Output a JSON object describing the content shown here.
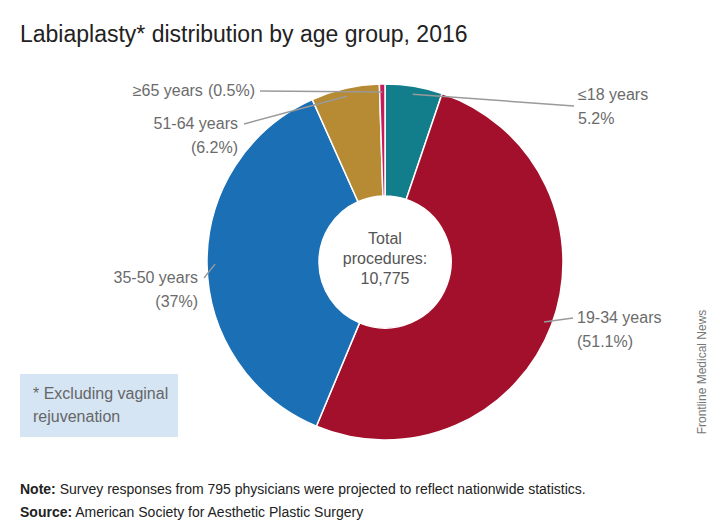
{
  "chart_data": {
    "type": "pie",
    "title": "Labiaplasty* distribution by age group, 2016",
    "categories": [
      "≤18 years",
      "19-34 years",
      "35-50 years",
      "51-64 years",
      "≥65 years"
    ],
    "values": [
      5.2,
      51.1,
      37,
      6.2,
      0.5
    ],
    "value_labels": [
      "5.2%",
      "(51.1%)",
      "(37%)",
      "(6.2%)",
      "(0.5%)"
    ],
    "colors": [
      "#127e8b",
      "#a3102b",
      "#1b6fb4",
      "#b68b34",
      "#c41c5a"
    ],
    "data_labels": true,
    "center_label": [
      "Total",
      "procedures:"
    ],
    "total": {
      "value": 10775,
      "label": "10,775"
    },
    "footnote": [
      "* Excluding vaginal",
      "rejuvenation"
    ],
    "note": {
      "label": "Note:",
      "text": " Survey responses from 795 physicians were projected to reflect nationwide statistics."
    },
    "source": {
      "label": "Source:",
      "text": " American Society for Aesthetic Plastic Surgery"
    },
    "credit": "Frontline Medical News"
  }
}
